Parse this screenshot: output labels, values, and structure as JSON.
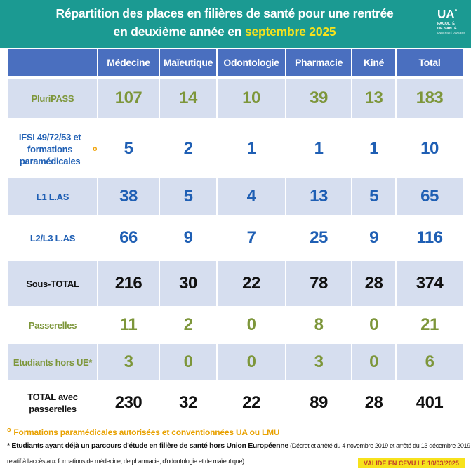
{
  "header": {
    "title_line1": "Répartition des places en filières de santé pour une rentrée",
    "title_line2_prefix": "en deuxième année en ",
    "title_line2_highlight": "septembre 2025",
    "logo_text": "UA",
    "logo_sub1": "FACULTÉ",
    "logo_sub2": "DE SANTÉ",
    "logo_sub3": "UNIVERSITÉ D'ANGERS"
  },
  "table": {
    "columns": [
      "Médecine",
      "Maïeutique",
      "Odontologie",
      "Pharmacie",
      "Kiné",
      "Total"
    ],
    "rows": [
      {
        "label": "PluriPASS",
        "label_color": "green",
        "value_color": "green",
        "bg": "blue",
        "values": [
          "107",
          "14",
          "10",
          "39",
          "13",
          "183"
        ]
      },
      {
        "label": "IFSI 49/72/53 et formations paramédicales",
        "label_mark": "o",
        "label_color": "navy",
        "value_color": "navy",
        "bg": "white",
        "values": [
          "5",
          "2",
          "1",
          "1",
          "1",
          "10"
        ]
      },
      {
        "label": "L1 L.AS",
        "label_color": "navy",
        "value_color": "navy",
        "bg": "blue",
        "values": [
          "38",
          "5",
          "4",
          "13",
          "5",
          "65"
        ]
      },
      {
        "label": "L2/L3 L.AS",
        "label_color": "navy",
        "value_color": "navy",
        "bg": "white",
        "values": [
          "66",
          "9",
          "7",
          "25",
          "9",
          "116"
        ]
      },
      {
        "label": "Sous-TOTAL",
        "label_color": "black",
        "value_color": "black",
        "bg": "blue",
        "values": [
          "216",
          "30",
          "22",
          "78",
          "28",
          "374"
        ]
      },
      {
        "label": "Passerelles",
        "label_color": "green",
        "value_color": "green",
        "bg": "white",
        "values": [
          "11",
          "2",
          "0",
          "8",
          "0",
          "21"
        ]
      },
      {
        "label": "Etudiants hors UE*",
        "label_color": "green",
        "value_color": "green",
        "bg": "blue",
        "values": [
          "3",
          "0",
          "0",
          "3",
          "0",
          "6"
        ]
      },
      {
        "label": "TOTAL avec passerelles",
        "label_color": "black",
        "value_color": "black",
        "bg": "white",
        "values": [
          "230",
          "32",
          "22",
          "89",
          "28",
          "401"
        ]
      }
    ]
  },
  "footer": {
    "note1_mark": "o",
    "note1": "Formations paramédicales autorisées et conventionnées UA ou LMU",
    "note2_bold": "* Etudiants ayant déjà un parcours d'étude en filière de santé hors Union Européenne",
    "note2_normal": " (Décret et arrêté du 4 novembre 2019 et arrêté du 13 décembre 2019",
    "note3": "relatif à l'accès aux formations de médecine, de pharmacie, d'odontologie et de maïeutique).",
    "validation": "VALIDE EN CFVU LE 10/03/2025"
  }
}
